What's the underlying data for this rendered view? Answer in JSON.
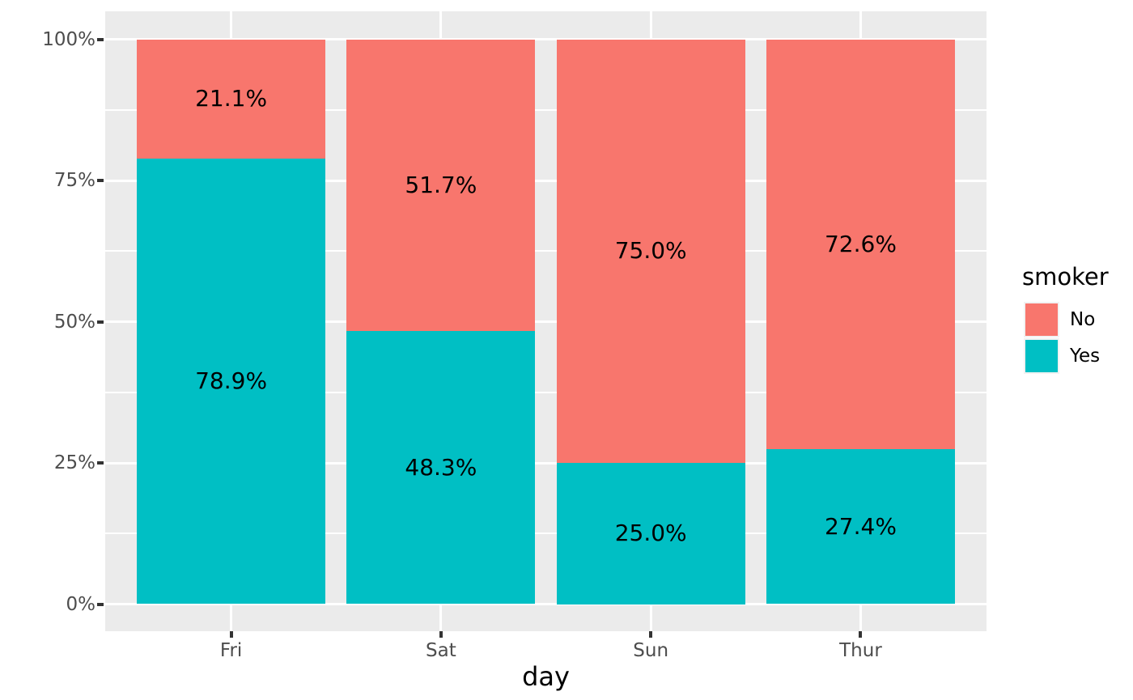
{
  "chart_data": {
    "type": "bar",
    "stacked": "percent",
    "orientation": "vertical",
    "xlabel": "day",
    "ylabel": "",
    "categories": [
      "Fri",
      "Sat",
      "Sun",
      "Thur"
    ],
    "series": [
      {
        "name": "No",
        "color": "#F8766D",
        "values": [
          21.1,
          51.7,
          75.0,
          72.6
        ],
        "labels": [
          "21.1%",
          "51.7%",
          "75.0%",
          "72.6%"
        ]
      },
      {
        "name": "Yes",
        "color": "#00BFC4",
        "values": [
          78.9,
          48.3,
          25.0,
          27.4
        ],
        "labels": [
          "78.9%",
          "48.3%",
          "25.0%",
          "27.4%"
        ]
      }
    ],
    "y_axis": {
      "range": [
        0,
        100
      ],
      "ticks": [
        {
          "value": 0,
          "label": "0%"
        },
        {
          "value": 25,
          "label": "25%"
        },
        {
          "value": 50,
          "label": "50%"
        },
        {
          "value": 75,
          "label": "75%"
        },
        {
          "value": 100,
          "label": "100%"
        }
      ],
      "minor_ticks": [
        12.5,
        37.5,
        62.5,
        87.5
      ]
    },
    "legend": {
      "title": "smoker",
      "position": "right",
      "entries": [
        {
          "label": "No",
          "color": "#F8766D"
        },
        {
          "label": "Yes",
          "color": "#00BFC4"
        }
      ]
    },
    "style": {
      "panel_background": "#EBEBEB",
      "grid_color": "#FFFFFF",
      "axis_text_color": "#4D4D4D",
      "tick_color": "#333333",
      "text_color": "#000000"
    }
  }
}
